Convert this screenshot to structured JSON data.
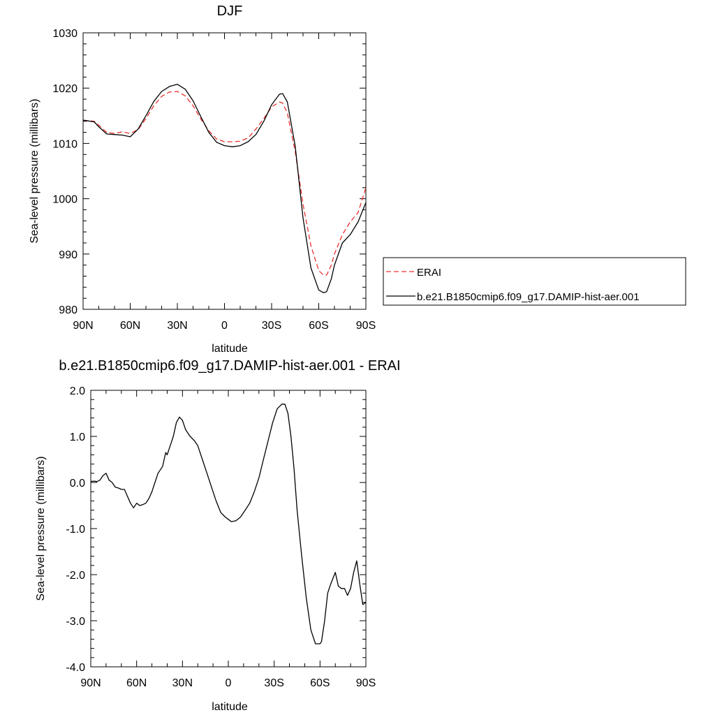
{
  "chart_data": [
    {
      "type": "line",
      "title": "DJF",
      "xlabel": "latitude",
      "ylabel": "Sea-level pressure (millibars)",
      "xlim": [
        90,
        -90
      ],
      "ylim": [
        980,
        1030
      ],
      "x_ticks": [
        90,
        60,
        30,
        0,
        -30,
        -60,
        -90
      ],
      "x_tick_labels": [
        "90N",
        "60N",
        "30N",
        "0",
        "30S",
        "60S",
        "90S"
      ],
      "y_ticks": [
        980,
        990,
        1000,
        1010,
        1020,
        1030
      ],
      "y_tick_labels": [
        "980",
        "990",
        "1000",
        "1010",
        "1020",
        "1030"
      ],
      "legend_position": "right",
      "series": [
        {
          "name": "ERAI",
          "color": "#e8312f",
          "dash": "dashed",
          "x": [
            90,
            83,
            80,
            75,
            70,
            65,
            60,
            55,
            50,
            45,
            40,
            35,
            30,
            25,
            20,
            15,
            10,
            5,
            0,
            -5,
            -10,
            -15,
            -20,
            -25,
            -30,
            -35,
            -37,
            -40,
            -45,
            -50,
            -55,
            -60,
            -63,
            -65,
            -68,
            -70,
            -75,
            -80,
            -85,
            -90
          ],
          "y": [
            1014.2,
            1014.0,
            1013.3,
            1012.0,
            1011.8,
            1012.1,
            1011.8,
            1012.5,
            1014.5,
            1016.8,
            1018.5,
            1019.3,
            1019.4,
            1018.6,
            1016.8,
            1014.4,
            1012.3,
            1010.8,
            1010.3,
            1010.3,
            1010.4,
            1011.0,
            1012.6,
            1014.5,
            1016.6,
            1017.5,
            1017.3,
            1015.5,
            1008.5,
            999.0,
            991.5,
            987.0,
            986.2,
            986.2,
            988.0,
            990.0,
            993.5,
            995.8,
            997.5,
            1002.0
          ]
        },
        {
          "name": "b.e21.B1850cmip6.f09_g17.DAMIP-hist-aer.001",
          "color": "#000000",
          "dash": "solid",
          "x": [
            90,
            83,
            80,
            75,
            70,
            65,
            60,
            55,
            50,
            45,
            40,
            35,
            30,
            25,
            20,
            15,
            10,
            5,
            0,
            -5,
            -10,
            -15,
            -20,
            -25,
            -30,
            -35,
            -37,
            -40,
            -45,
            -50,
            -55,
            -60,
            -63,
            -65,
            -68,
            -70,
            -75,
            -80,
            -85,
            -90
          ],
          "y": [
            1014.2,
            1013.9,
            1013.0,
            1011.7,
            1011.6,
            1011.5,
            1011.2,
            1012.6,
            1015.0,
            1017.6,
            1019.4,
            1020.3,
            1020.7,
            1019.8,
            1017.7,
            1014.8,
            1012.0,
            1010.2,
            1009.6,
            1009.4,
            1009.6,
            1010.3,
            1011.6,
            1014.0,
            1017.0,
            1018.9,
            1019.0,
            1017.5,
            1009.5,
            996.5,
            987.5,
            983.5,
            983.0,
            983.2,
            985.5,
            988.0,
            992.0,
            993.5,
            995.8,
            999.3
          ]
        }
      ]
    },
    {
      "type": "line",
      "title": "b.e21.B1850cmip6.f09_g17.DAMIP-hist-aer.001 - ERAI",
      "xlabel": "latitude",
      "ylabel": "Sea-level pressure (millibars)",
      "xlim": [
        90,
        -90
      ],
      "ylim": [
        -4.0,
        2.0
      ],
      "x_ticks": [
        90,
        60,
        30,
        0,
        -30,
        -60,
        -90
      ],
      "x_tick_labels": [
        "90N",
        "60N",
        "30N",
        "0",
        "30S",
        "60S",
        "90S"
      ],
      "y_ticks": [
        -4.0,
        -3.0,
        -2.0,
        -1.0,
        0.0,
        1.0,
        2.0
      ],
      "y_tick_labels": [
        "-4.0",
        "-3.0",
        "-2.0",
        "-1.0",
        "0.0",
        "1.0",
        "2.0"
      ],
      "series": [
        {
          "color": "#000000",
          "dash": "solid",
          "x": [
            90,
            88,
            86,
            84,
            82,
            80,
            78,
            76,
            74,
            72,
            70,
            68,
            66,
            64,
            62,
            60,
            58,
            56,
            54,
            52,
            50,
            48,
            46,
            44,
            43,
            42,
            41,
            40,
            38,
            36,
            34,
            32,
            30,
            28,
            25,
            22,
            20,
            17,
            14,
            11,
            8,
            5,
            2,
            0,
            -2,
            -5,
            -8,
            -11,
            -14,
            -17,
            -20,
            -23,
            -26,
            -29,
            -32,
            -35,
            -37,
            -39,
            -41,
            -43,
            -45,
            -48,
            -51,
            -54,
            -57,
            -60,
            -61,
            -63,
            -65,
            -67,
            -70,
            -72,
            -74,
            -76,
            -78,
            -80,
            -82,
            -84,
            -86,
            -88,
            -90
          ],
          "y": [
            0.02,
            0.03,
            0.02,
            0.05,
            0.15,
            0.2,
            0.05,
            0.0,
            -0.1,
            -0.12,
            -0.15,
            -0.15,
            -0.3,
            -0.45,
            -0.55,
            -0.45,
            -0.5,
            -0.48,
            -0.45,
            -0.35,
            -0.2,
            0.0,
            0.2,
            0.3,
            0.35,
            0.5,
            0.65,
            0.6,
            0.8,
            1.0,
            1.3,
            1.42,
            1.35,
            1.15,
            1.0,
            0.9,
            0.8,
            0.5,
            0.2,
            -0.1,
            -0.4,
            -0.65,
            -0.75,
            -0.8,
            -0.85,
            -0.83,
            -0.75,
            -0.6,
            -0.45,
            -0.2,
            0.1,
            0.5,
            0.9,
            1.3,
            1.6,
            1.7,
            1.7,
            1.5,
            1.0,
            0.3,
            -0.6,
            -1.6,
            -2.5,
            -3.2,
            -3.5,
            -3.5,
            -3.45,
            -3.0,
            -2.4,
            -2.2,
            -1.95,
            -2.25,
            -2.3,
            -2.3,
            -2.45,
            -2.3,
            -1.95,
            -1.7,
            -2.2,
            -2.65,
            -2.6
          ]
        }
      ]
    }
  ]
}
